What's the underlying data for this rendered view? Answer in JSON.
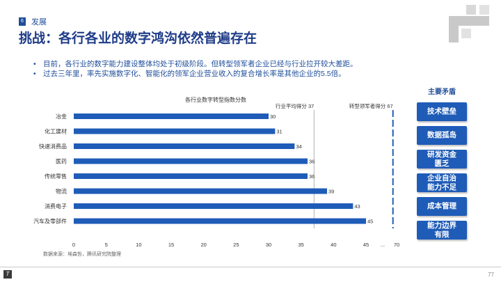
{
  "header": {
    "section_number": "6",
    "section_name": "发展",
    "title": "挑战：各行各业的数字鸿沟依然普遍存在"
  },
  "bullets": [
    "目前，各行业的数字能力建设整体均处于初级阶段。但转型领军者企业已经与行业拉开较大差距。",
    "过去三年里，率先实施数字化、智能化的领军企业营业收入的复合增长率是其他企业的5.5倍。"
  ],
  "chart_data": {
    "type": "bar",
    "orientation": "horizontal",
    "title": "各行业数字转型指数分数",
    "categories": [
      "冶金",
      "化工建材",
      "快速消费品",
      "医药",
      "传统零售",
      "物流",
      "消费电子",
      "汽车及零部件"
    ],
    "values": [
      30,
      31,
      34,
      36,
      36,
      39,
      43,
      45
    ],
    "x_ticks": [
      "0",
      "5",
      "10",
      "15",
      "20",
      "25",
      "30",
      "35",
      "40",
      "45",
      "...",
      "70"
    ],
    "xlim": [
      0,
      70
    ],
    "reference_lines": [
      {
        "label": "行业平均得分",
        "value": 37
      },
      {
        "label": "转型领军者得分",
        "value": 67
      }
    ],
    "grid": false,
    "bar_color": "#1f5cb8"
  },
  "side_panel": {
    "title": "主要矛盾",
    "items": [
      "技术壁垒",
      "数据孤岛",
      "研发资金\n匮乏",
      "企业自治\n能力不足",
      "成本管理",
      "能力边界\n有限"
    ]
  },
  "source": "数据来源：埃森哲，腾讯研究院整理",
  "footer": {
    "page_number": "77"
  }
}
